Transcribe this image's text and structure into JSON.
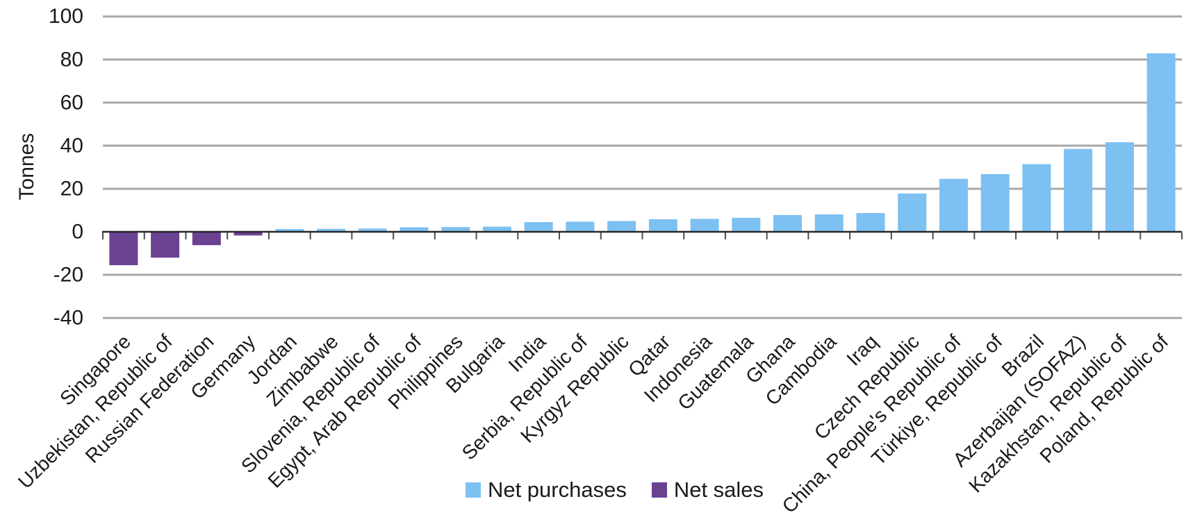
{
  "chart_data": {
    "type": "bar",
    "title": "",
    "xlabel": "",
    "ylabel": "Tonnes",
    "ylim": [
      -40,
      100
    ],
    "yticks": [
      100,
      80,
      60,
      40,
      20,
      0,
      -20,
      -40
    ],
    "grid": "horizontal-gray-lines",
    "bar_orientation": "vertical",
    "x_labels_rotation_deg": 45,
    "legend_position": "bottom-center",
    "series_rule": "positive values colored as Net purchases, negative values colored as Net sales",
    "legend": [
      {
        "label": "Net purchases",
        "color": "#7DC0F2"
      },
      {
        "label": "Net sales",
        "color": "#6B4292"
      }
    ],
    "categories": [
      "Singapore",
      "Uzbekistan, Republic of",
      "Russian Federation",
      "Germany",
      "Jordan",
      "Zimbabwe",
      "Slovenia, Republic of",
      "Egypt, Arab Republic of",
      "Philippines",
      "Bulgaria",
      "India",
      "Serbia, Republic of",
      "Kyrgyz Republic",
      "Qatar",
      "Indonesia",
      "Guatemala",
      "Ghana",
      "Cambodia",
      "Iraq",
      "Czech Republic",
      "China, People's Republic of",
      "Türkiye, Republic of",
      "Brazil",
      "Azerbaijan (SOFAZ)",
      "Kazakhstan, Republic of",
      "Poland, Republic of"
    ],
    "values": [
      -15.5,
      -12,
      -6.2,
      -1.7,
      1.3,
      1.4,
      1.5,
      2.1,
      2.2,
      2.4,
      4.5,
      4.7,
      5,
      5.8,
      6,
      6.5,
      7.8,
      8.1,
      8.7,
      17.8,
      24.6,
      26.8,
      31.4,
      38.5,
      41.6,
      82.9
    ],
    "colors": {
      "net_purchases": "#7DC0F2",
      "net_sales": "#6B4292",
      "gridline": "#A8A8A8",
      "axis": "#262626",
      "tick": "#4D4D4D",
      "text": "#1A1A1A"
    }
  }
}
